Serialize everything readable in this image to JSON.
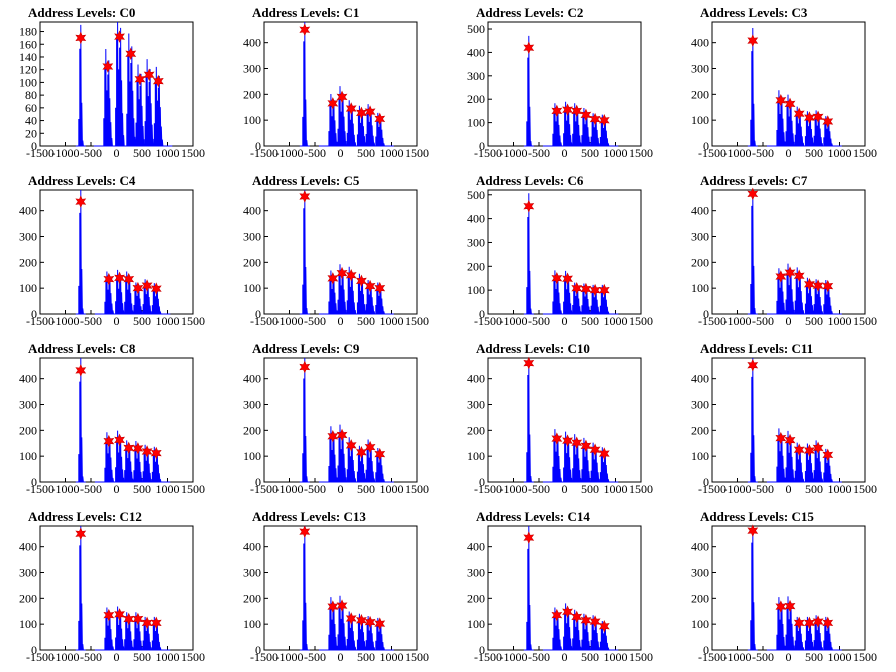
{
  "colors": {
    "histogram": "#0000ff",
    "marker": "#ff0000",
    "axis": "#000000"
  },
  "chart_data": [
    {
      "type": "histogram",
      "title": "Address Levels: C0",
      "x_ticks": [
        -1500,
        -1000,
        -500,
        0,
        500,
        1000,
        1500
      ],
      "xlim": [
        -1500,
        1500
      ],
      "y_ticks": [
        0,
        20,
        40,
        60,
        80,
        100,
        120,
        140,
        160,
        180
      ],
      "ylim": [
        0,
        195
      ],
      "peaks": [
        {
          "x": -700,
          "y": 170
        },
        {
          "x": -170,
          "y": 125
        },
        {
          "x": 60,
          "y": 172
        },
        {
          "x": 280,
          "y": 145
        },
        {
          "x": 460,
          "y": 105
        },
        {
          "x": 640,
          "y": 112
        },
        {
          "x": 820,
          "y": 102
        }
      ]
    },
    {
      "type": "histogram",
      "title": "Address Levels: C1",
      "x_ticks": [
        -1500,
        -1000,
        -500,
        0,
        500,
        1000,
        1500
      ],
      "xlim": [
        -1500,
        1500
      ],
      "y_ticks": [
        0,
        100,
        200,
        300,
        400
      ],
      "ylim": [
        0,
        480
      ],
      "peaks": [
        {
          "x": -700,
          "y": 450
        },
        {
          "x": -150,
          "y": 165
        },
        {
          "x": 30,
          "y": 190
        },
        {
          "x": 210,
          "y": 145
        },
        {
          "x": 410,
          "y": 128
        },
        {
          "x": 580,
          "y": 133
        },
        {
          "x": 770,
          "y": 105
        }
      ]
    },
    {
      "type": "histogram",
      "title": "Address Levels: C2",
      "x_ticks": [
        -1500,
        -1000,
        -500,
        0,
        500,
        1000,
        1500
      ],
      "xlim": [
        -1500,
        1500
      ],
      "y_ticks": [
        0,
        100,
        200,
        300,
        400,
        500
      ],
      "ylim": [
        0,
        530
      ],
      "peaks": [
        {
          "x": -700,
          "y": 420
        },
        {
          "x": -150,
          "y": 150
        },
        {
          "x": 60,
          "y": 155
        },
        {
          "x": 240,
          "y": 150
        },
        {
          "x": 420,
          "y": 133
        },
        {
          "x": 600,
          "y": 115
        },
        {
          "x": 780,
          "y": 110
        }
      ]
    },
    {
      "type": "histogram",
      "title": "Address Levels: C3",
      "x_ticks": [
        -1500,
        -1000,
        -500,
        0,
        500,
        1000,
        1500
      ],
      "xlim": [
        -1500,
        1500
      ],
      "y_ticks": [
        0,
        100,
        200,
        300,
        400
      ],
      "ylim": [
        0,
        480
      ],
      "peaks": [
        {
          "x": -700,
          "y": 408
        },
        {
          "x": -150,
          "y": 177
        },
        {
          "x": 30,
          "y": 163
        },
        {
          "x": 210,
          "y": 125
        },
        {
          "x": 410,
          "y": 110
        },
        {
          "x": 580,
          "y": 113
        },
        {
          "x": 770,
          "y": 95
        }
      ]
    },
    {
      "type": "histogram",
      "title": "Address Levels: C4",
      "x_ticks": [
        -1500,
        -1000,
        -500,
        0,
        500,
        1000,
        1500
      ],
      "xlim": [
        -1500,
        1500
      ],
      "y_ticks": [
        0,
        100,
        200,
        300,
        400
      ],
      "ylim": [
        0,
        480
      ],
      "peaks": [
        {
          "x": -700,
          "y": 435
        },
        {
          "x": -150,
          "y": 135
        },
        {
          "x": 60,
          "y": 140
        },
        {
          "x": 240,
          "y": 135
        },
        {
          "x": 420,
          "y": 100
        },
        {
          "x": 600,
          "y": 110
        },
        {
          "x": 780,
          "y": 98
        }
      ]
    },
    {
      "type": "histogram",
      "title": "Address Levels: C5",
      "x_ticks": [
        -1500,
        -1000,
        -500,
        0,
        500,
        1000,
        1500
      ],
      "xlim": [
        -1500,
        1500
      ],
      "y_ticks": [
        0,
        100,
        200,
        300,
        400
      ],
      "ylim": [
        0,
        480
      ],
      "peaks": [
        {
          "x": -700,
          "y": 455
        },
        {
          "x": -150,
          "y": 138
        },
        {
          "x": 30,
          "y": 158
        },
        {
          "x": 210,
          "y": 150
        },
        {
          "x": 410,
          "y": 128
        },
        {
          "x": 580,
          "y": 108
        },
        {
          "x": 770,
          "y": 100
        }
      ]
    },
    {
      "type": "histogram",
      "title": "Address Levels: C6",
      "x_ticks": [
        -1500,
        -1000,
        -500,
        0,
        500,
        1000,
        1500
      ],
      "xlim": [
        -1500,
        1500
      ],
      "y_ticks": [
        0,
        100,
        200,
        300,
        400,
        500
      ],
      "ylim": [
        0,
        520
      ],
      "peaks": [
        {
          "x": -700,
          "y": 452
        },
        {
          "x": -150,
          "y": 150
        },
        {
          "x": 60,
          "y": 148
        },
        {
          "x": 240,
          "y": 108
        },
        {
          "x": 420,
          "y": 105
        },
        {
          "x": 600,
          "y": 100
        },
        {
          "x": 780,
          "y": 100
        }
      ]
    },
    {
      "type": "histogram",
      "title": "Address Levels: C7",
      "x_ticks": [
        -1500,
        -1000,
        -500,
        0,
        500,
        1000,
        1500
      ],
      "xlim": [
        -1500,
        1500
      ],
      "y_ticks": [
        0,
        100,
        200,
        300,
        400
      ],
      "ylim": [
        0,
        480
      ],
      "peaks": [
        {
          "x": -700,
          "y": 465
        },
        {
          "x": -150,
          "y": 145
        },
        {
          "x": 30,
          "y": 160
        },
        {
          "x": 210,
          "y": 148
        },
        {
          "x": 410,
          "y": 115
        },
        {
          "x": 580,
          "y": 110
        },
        {
          "x": 770,
          "y": 108
        }
      ]
    },
    {
      "type": "histogram",
      "title": "Address Levels: C8",
      "x_ticks": [
        -1500,
        -1000,
        -500,
        0,
        500,
        1000,
        1500
      ],
      "xlim": [
        -1500,
        1500
      ],
      "y_ticks": [
        0,
        100,
        200,
        300,
        400
      ],
      "ylim": [
        0,
        480
      ],
      "peaks": [
        {
          "x": -700,
          "y": 432
        },
        {
          "x": -150,
          "y": 158
        },
        {
          "x": 60,
          "y": 163
        },
        {
          "x": 240,
          "y": 132
        },
        {
          "x": 420,
          "y": 130
        },
        {
          "x": 600,
          "y": 118
        },
        {
          "x": 780,
          "y": 112
        }
      ]
    },
    {
      "type": "histogram",
      "title": "Address Levels: C9",
      "x_ticks": [
        -1500,
        -1000,
        -500,
        0,
        500,
        1000,
        1500
      ],
      "xlim": [
        -1500,
        1500
      ],
      "y_ticks": [
        0,
        100,
        200,
        300,
        400
      ],
      "ylim": [
        0,
        480
      ],
      "peaks": [
        {
          "x": -700,
          "y": 445
        },
        {
          "x": -150,
          "y": 177
        },
        {
          "x": 30,
          "y": 182
        },
        {
          "x": 210,
          "y": 142
        },
        {
          "x": 410,
          "y": 115
        },
        {
          "x": 580,
          "y": 135
        },
        {
          "x": 770,
          "y": 108
        }
      ]
    },
    {
      "type": "histogram",
      "title": "Address Levels: C10",
      "x_ticks": [
        -1500,
        -1000,
        -500,
        0,
        500,
        1000,
        1500
      ],
      "xlim": [
        -1500,
        1500
      ],
      "y_ticks": [
        0,
        100,
        200,
        300,
        400
      ],
      "ylim": [
        0,
        480
      ],
      "peaks": [
        {
          "x": -700,
          "y": 460
        },
        {
          "x": -150,
          "y": 168
        },
        {
          "x": 60,
          "y": 160
        },
        {
          "x": 240,
          "y": 152
        },
        {
          "x": 420,
          "y": 140
        },
        {
          "x": 600,
          "y": 125
        },
        {
          "x": 780,
          "y": 110
        }
      ]
    },
    {
      "type": "histogram",
      "title": "Address Levels: C11",
      "x_ticks": [
        -1500,
        -1000,
        -500,
        0,
        500,
        1000,
        1500
      ],
      "xlim": [
        -1500,
        1500
      ],
      "y_ticks": [
        0,
        100,
        200,
        300,
        400
      ],
      "ylim": [
        0,
        480
      ],
      "peaks": [
        {
          "x": -700,
          "y": 452
        },
        {
          "x": -150,
          "y": 170
        },
        {
          "x": 30,
          "y": 162
        },
        {
          "x": 210,
          "y": 125
        },
        {
          "x": 410,
          "y": 122
        },
        {
          "x": 580,
          "y": 132
        },
        {
          "x": 770,
          "y": 105
        }
      ]
    },
    {
      "type": "histogram",
      "title": "Address Levels: C12",
      "x_ticks": [
        -1500,
        -1000,
        -500,
        0,
        500,
        1000,
        1500
      ],
      "xlim": [
        -1500,
        1500
      ],
      "y_ticks": [
        0,
        100,
        200,
        300,
        400
      ],
      "ylim": [
        0,
        480
      ],
      "peaks": [
        {
          "x": -700,
          "y": 450
        },
        {
          "x": -150,
          "y": 135
        },
        {
          "x": 60,
          "y": 138
        },
        {
          "x": 240,
          "y": 120
        },
        {
          "x": 420,
          "y": 120
        },
        {
          "x": 600,
          "y": 105
        },
        {
          "x": 780,
          "y": 105
        }
      ]
    },
    {
      "type": "histogram",
      "title": "Address Levels: C13",
      "x_ticks": [
        -1500,
        -1000,
        -500,
        0,
        500,
        1000,
        1500
      ],
      "xlim": [
        -1500,
        1500
      ],
      "y_ticks": [
        0,
        100,
        200,
        300,
        400
      ],
      "ylim": [
        0,
        480
      ],
      "peaks": [
        {
          "x": -700,
          "y": 458
        },
        {
          "x": -150,
          "y": 168
        },
        {
          "x": 30,
          "y": 172
        },
        {
          "x": 210,
          "y": 122
        },
        {
          "x": 410,
          "y": 115
        },
        {
          "x": 580,
          "y": 108
        },
        {
          "x": 770,
          "y": 102
        }
      ]
    },
    {
      "type": "histogram",
      "title": "Address Levels: C14",
      "x_ticks": [
        -1500,
        -1000,
        -500,
        0,
        500,
        1000,
        1500
      ],
      "xlim": [
        -1500,
        1500
      ],
      "y_ticks": [
        0,
        100,
        200,
        300,
        400
      ],
      "ylim": [
        0,
        480
      ],
      "peaks": [
        {
          "x": -700,
          "y": 435
        },
        {
          "x": -150,
          "y": 135
        },
        {
          "x": 60,
          "y": 148
        },
        {
          "x": 240,
          "y": 128
        },
        {
          "x": 420,
          "y": 115
        },
        {
          "x": 600,
          "y": 110
        },
        {
          "x": 780,
          "y": 92
        }
      ]
    },
    {
      "type": "histogram",
      "title": "Address Levels: C15",
      "x_ticks": [
        -1500,
        -1000,
        -500,
        0,
        500,
        1000,
        1500
      ],
      "xlim": [
        -1500,
        1500
      ],
      "y_ticks": [
        0,
        100,
        200,
        300,
        400
      ],
      "ylim": [
        0,
        480
      ],
      "peaks": [
        {
          "x": -700,
          "y": 462
        },
        {
          "x": -150,
          "y": 168
        },
        {
          "x": 30,
          "y": 170
        },
        {
          "x": 210,
          "y": 105
        },
        {
          "x": 410,
          "y": 105
        },
        {
          "x": 580,
          "y": 110
        },
        {
          "x": 770,
          "y": 105
        }
      ]
    }
  ]
}
